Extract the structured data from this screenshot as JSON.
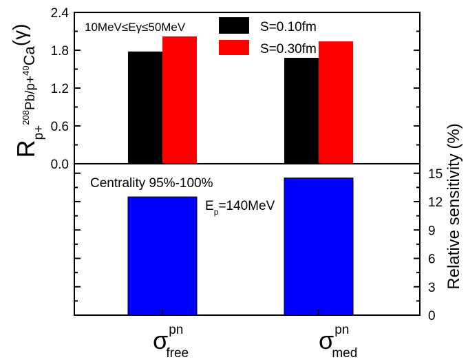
{
  "chart_data": [
    {
      "type": "bar",
      "panel": "top",
      "categories": [
        "σ_free^pn",
        "σ_med^pn"
      ],
      "series": [
        {
          "name": "S=0.10fm",
          "color": "#000000",
          "values": [
            1.78,
            1.68
          ]
        },
        {
          "name": "S=0.30fm",
          "color": "#ff0000",
          "values": [
            2.02,
            1.94
          ]
        }
      ],
      "ylabel": {
        "main": "R",
        "sub1": "p+",
        "sup1": "208",
        "mid": "Pb/p+",
        "sup2": "40",
        "tail": "Ca",
        "paren": "(γ)"
      },
      "ylim": [
        0.0,
        2.4
      ],
      "yticks": [
        "0.0",
        "0.6",
        "1.2",
        "1.8",
        "2.4"
      ],
      "annotation": "10MeV≤Eγ≤50MeV",
      "legend_position": "top-right"
    },
    {
      "type": "bar",
      "panel": "bottom",
      "categories": [
        "σ_free^pn",
        "σ_med^pn"
      ],
      "series": [
        {
          "color": "#0000ff",
          "values": [
            12.5,
            14.5
          ]
        }
      ],
      "ylabel": "Relative sensitivity (%)",
      "ylim": [
        0,
        16
      ],
      "yticks": [
        "0",
        "3",
        "6",
        "9",
        "12",
        "15"
      ],
      "annotations": {
        "centrality": "Centrality 95%-100%",
        "energy_main": "E",
        "energy_sub": "p",
        "energy_rest": "=140MeV"
      }
    }
  ],
  "xticks": [
    {
      "sym": "σ",
      "sup": "pn",
      "sub": "free"
    },
    {
      "sym": "σ",
      "sup": "pn",
      "sub": "med"
    }
  ]
}
